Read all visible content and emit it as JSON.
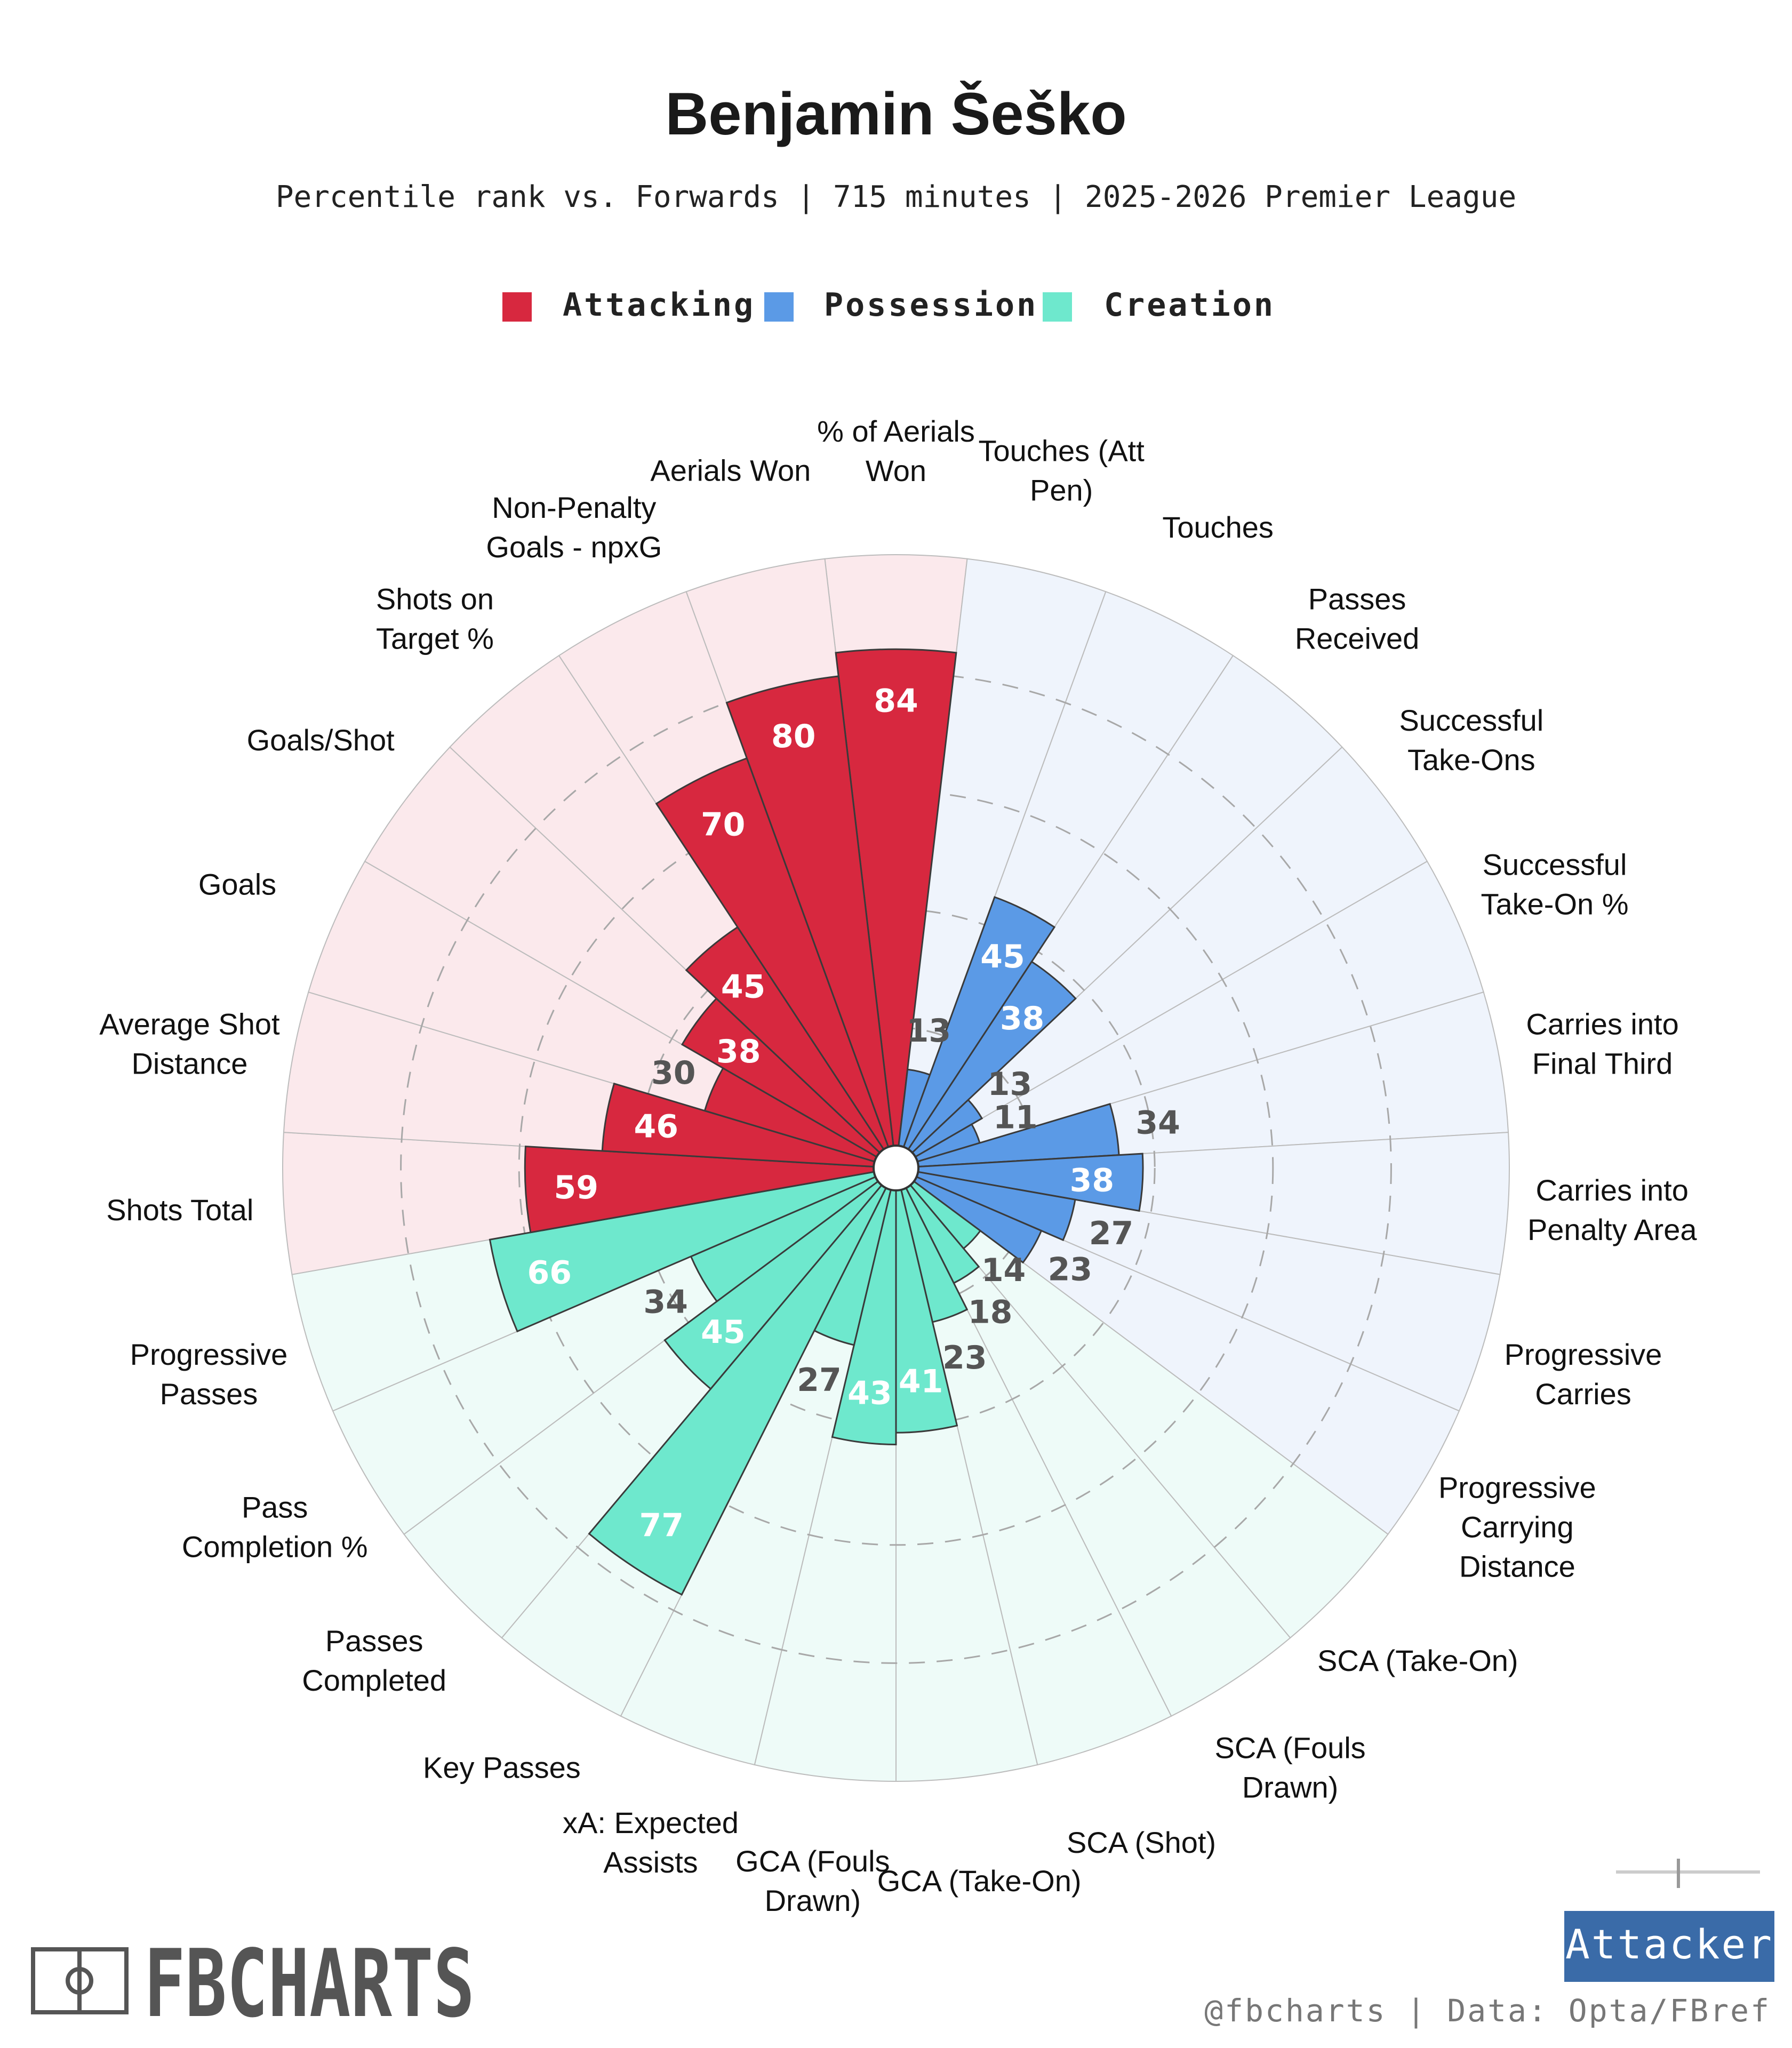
{
  "chart_data": {
    "type": "radar-bar",
    "title": "Benjamin Šeško",
    "subtitle": "Percentile rank vs. Forwards | 715 minutes | 2025-2026 Premier League",
    "value_range": [
      0,
      100
    ],
    "legend": [
      {
        "name": "Attacking",
        "color": "#d7283f"
      },
      {
        "name": "Possession",
        "color": "#5b9ae6"
      },
      {
        "name": "Creation",
        "color": "#6ee8cd"
      }
    ],
    "background_colors": {
      "Attacking": "#fbe9ec",
      "Possession": "#eff4fc",
      "Creation": "#eefbf8"
    },
    "metrics": [
      {
        "label": "% of Aerials Won",
        "value": 84,
        "category": "Attacking"
      },
      {
        "label": "Touches (Att Pen)",
        "value": 13,
        "category": "Possession"
      },
      {
        "label": "Touches",
        "value": 45,
        "category": "Possession"
      },
      {
        "label": "Passes Received",
        "value": 38,
        "category": "Possession"
      },
      {
        "label": "Successful Take-Ons",
        "value": 13,
        "category": "Possession"
      },
      {
        "label": "Successful Take-On %",
        "value": 11,
        "category": "Possession"
      },
      {
        "label": "Carries into Final Third",
        "value": 34,
        "category": "Possession"
      },
      {
        "label": "Carries into Penalty Area",
        "value": 38,
        "category": "Possession"
      },
      {
        "label": "Progressive Carries",
        "value": 27,
        "category": "Possession"
      },
      {
        "label": "Progressive Carrying Distance",
        "value": 23,
        "category": "Possession"
      },
      {
        "label": "SCA (Take-On)",
        "value": 14,
        "category": "Creation"
      },
      {
        "label": "SCA (Fouls Drawn)",
        "value": 18,
        "category": "Creation"
      },
      {
        "label": "SCA (Shot)",
        "value": 23,
        "category": "Creation"
      },
      {
        "label": "GCA (Take-On)",
        "value": 41,
        "category": "Creation"
      },
      {
        "label": "GCA (Fouls Drawn)",
        "value": 43,
        "category": "Creation"
      },
      {
        "label": "xA: Expected Assists",
        "value": 27,
        "category": "Creation"
      },
      {
        "label": "Key Passes",
        "value": 77,
        "category": "Creation"
      },
      {
        "label": "Passes Completed",
        "value": 45,
        "category": "Creation"
      },
      {
        "label": "Pass Completion %",
        "value": 34,
        "category": "Creation"
      },
      {
        "label": "Progressive Passes",
        "value": 66,
        "category": "Creation"
      },
      {
        "label": "Shots Total",
        "value": 59,
        "category": "Attacking"
      },
      {
        "label": "Average Shot Distance",
        "value": 46,
        "category": "Attacking"
      },
      {
        "label": "Goals",
        "value": 30,
        "category": "Attacking"
      },
      {
        "label": "Goals/Shot",
        "value": 38,
        "category": "Attacking"
      },
      {
        "label": "Shots on Target %",
        "value": 45,
        "category": "Attacking"
      },
      {
        "label": "Non-Penalty Goals - npxG",
        "value": 70,
        "category": "Attacking"
      },
      {
        "label": "Aerials Won",
        "value": 80,
        "category": "Attacking"
      }
    ]
  },
  "branding": {
    "logo_text": "FBCHARTS",
    "role_badge": "Attacker",
    "credit": "@fbcharts | Data: Opta/FBref",
    "badge_color": "#3a6ba8"
  }
}
